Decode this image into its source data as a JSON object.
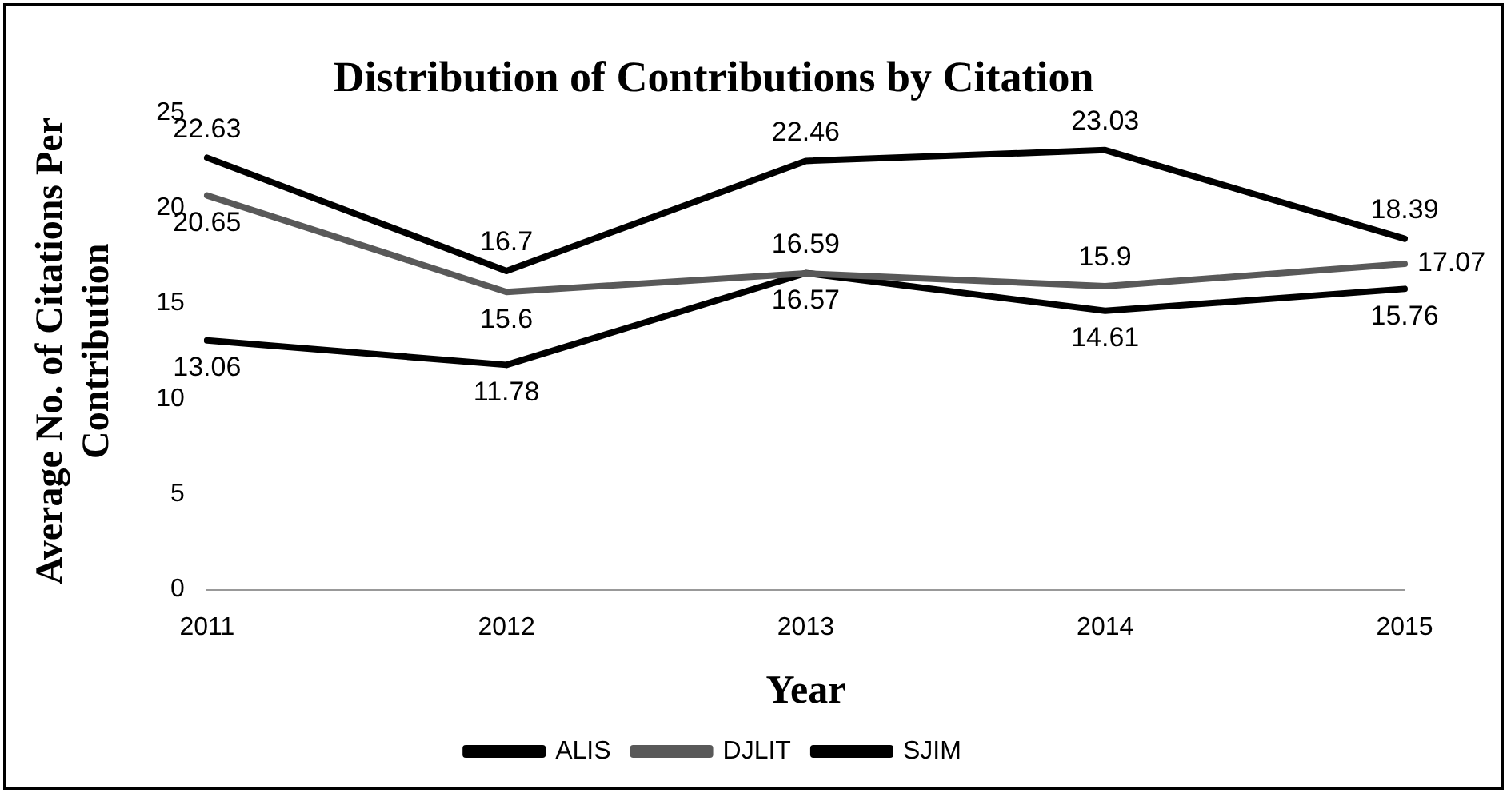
{
  "chart_data": {
    "type": "line",
    "title": "Distribution of Contributions by Citation",
    "xlabel": "Year",
    "ylabel": "Average No. of Citations Per Contribution",
    "categories": [
      "2011",
      "2012",
      "2013",
      "2014",
      "2015"
    ],
    "series": [
      {
        "name": "ALIS",
        "color": "#000000",
        "values": [
          22.63,
          16.7,
          22.46,
          23.03,
          18.39
        ]
      },
      {
        "name": "DJLIT",
        "color": "#595959",
        "values": [
          20.65,
          15.6,
          16.57,
          15.9,
          17.07
        ]
      },
      {
        "name": "SJIM",
        "color": "#000000",
        "values": [
          13.06,
          11.78,
          16.59,
          14.61,
          15.76
        ]
      }
    ],
    "ylim": [
      0,
      25
    ],
    "yticks": [
      0,
      5,
      10,
      15,
      20,
      25
    ],
    "grid": false,
    "legend": "bottom",
    "marker": "none",
    "line_style": "solid",
    "data_labels": true
  }
}
